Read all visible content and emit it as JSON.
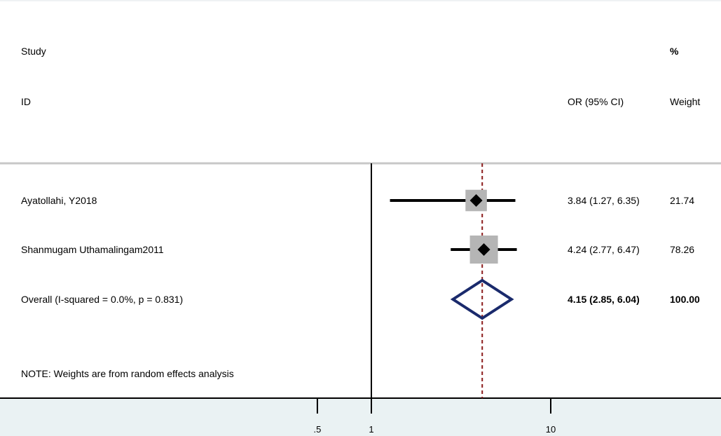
{
  "chart_data": {
    "type": "forest",
    "scale": "log",
    "reference_line": 1,
    "pooled_line": 4.15,
    "header": {
      "study_label": "Study",
      "id_label": "ID",
      "effect_label": "OR (95% CI)",
      "percent_label": "%",
      "weight_label": "Weight"
    },
    "studies": [
      {
        "label": "Ayatollahi, Y2018",
        "or": 3.84,
        "ci_low": 1.27,
        "ci_high": 6.35,
        "ci_text": "3.84 (1.27, 6.35)",
        "weight": 21.74,
        "weight_text": "21.74"
      },
      {
        "label": "Shanmugam Uthamalingam2011",
        "or": 4.24,
        "ci_low": 2.77,
        "ci_high": 6.47,
        "ci_text": "4.24 (2.77, 6.47)",
        "weight": 78.26,
        "weight_text": "78.26"
      }
    ],
    "overall": {
      "label": "Overall  (I-squared = 0.0%, p = 0.831)",
      "or": 4.15,
      "ci_low": 2.85,
      "ci_high": 6.04,
      "ci_text": "4.15 (2.85, 6.04)",
      "weight_text": "100.00"
    },
    "note": "NOTE: Weights are from random effects analysis",
    "x_ticks": [
      0.5,
      1,
      10
    ],
    "x_tick_labels": [
      ".5",
      "1",
      "10"
    ],
    "colors": {
      "background": "#ffffff",
      "axis_area": "#eaf2f3",
      "separator": "#c8c8c8",
      "ref_line": "#000000",
      "pooled_line": "#8b1a1a",
      "weight_box": "#b5b5b5",
      "point": "#000000",
      "diamond": "#1a2a6c"
    }
  }
}
